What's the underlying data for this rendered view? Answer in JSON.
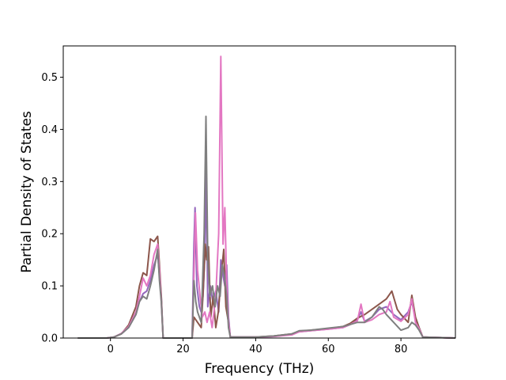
{
  "chart_data": {
    "type": "line",
    "title": "",
    "xlabel": "Frequency (THz)",
    "ylabel": "Partial Density of States",
    "xlim": [
      -13,
      95
    ],
    "ylim": [
      0,
      0.56
    ],
    "xticks": [
      0,
      20,
      40,
      60,
      80
    ],
    "yticks": [
      0.0,
      0.1,
      0.2,
      0.3,
      0.4,
      0.5
    ],
    "xtick_labels": [
      "0",
      "20",
      "40",
      "60",
      "80"
    ],
    "ytick_labels": [
      "0.0",
      "0.1",
      "0.2",
      "0.3",
      "0.4",
      "0.5"
    ],
    "grid": false,
    "legend": false,
    "series": [
      {
        "color": "#9467bd",
        "points": [
          [
            -9,
            0
          ],
          [
            -1,
            0
          ],
          [
            1,
            0.002
          ],
          [
            3,
            0.008
          ],
          [
            5,
            0.02
          ],
          [
            7,
            0.045
          ],
          [
            8,
            0.07
          ],
          [
            9,
            0.085
          ],
          [
            10,
            0.09
          ],
          [
            11,
            0.11
          ],
          [
            12,
            0.14
          ],
          [
            13,
            0.16
          ],
          [
            13.5,
            0.12
          ],
          [
            14,
            0.08
          ],
          [
            14.5,
            0.0
          ],
          [
            22.5,
            0.0
          ],
          [
            23,
            0.18
          ],
          [
            23.3,
            0.25
          ],
          [
            23.8,
            0.1
          ],
          [
            24.5,
            0.06
          ],
          [
            25,
            0.05
          ],
          [
            25.5,
            0.08
          ],
          [
            26,
            0.16
          ],
          [
            26.4,
            0.32
          ],
          [
            26.8,
            0.06
          ],
          [
            27.5,
            0.1
          ],
          [
            28.2,
            0.07
          ],
          [
            29,
            0.09
          ],
          [
            29.8,
            0.05
          ],
          [
            30.4,
            0.15
          ],
          [
            31,
            0.12
          ],
          [
            31.5,
            0.1
          ],
          [
            32,
            0.14
          ],
          [
            32.5,
            0.04
          ],
          [
            33,
            0.002
          ],
          [
            40,
            0.002
          ],
          [
            45,
            0.003
          ],
          [
            50,
            0.007
          ],
          [
            52,
            0.012
          ],
          [
            55,
            0.014
          ],
          [
            60,
            0.017
          ],
          [
            64,
            0.02
          ],
          [
            66,
            0.026
          ],
          [
            68,
            0.035
          ],
          [
            69,
            0.05
          ],
          [
            70,
            0.032
          ],
          [
            72,
            0.04
          ],
          [
            74,
            0.055
          ],
          [
            76,
            0.06
          ],
          [
            78,
            0.045
          ],
          [
            80,
            0.035
          ],
          [
            82,
            0.05
          ],
          [
            83,
            0.07
          ],
          [
            84,
            0.035
          ],
          [
            85,
            0.02
          ],
          [
            86,
            0.002
          ],
          [
            95,
            0
          ]
        ]
      },
      {
        "color": "#8c564b",
        "points": [
          [
            -9,
            0
          ],
          [
            -1,
            0
          ],
          [
            1,
            0.002
          ],
          [
            3,
            0.008
          ],
          [
            5,
            0.025
          ],
          [
            7,
            0.06
          ],
          [
            8,
            0.1
          ],
          [
            9,
            0.125
          ],
          [
            10,
            0.12
          ],
          [
            11,
            0.19
          ],
          [
            12,
            0.185
          ],
          [
            13,
            0.195
          ],
          [
            13.5,
            0.14
          ],
          [
            14,
            0.08
          ],
          [
            14.5,
            0.0
          ],
          [
            22.5,
            0.0
          ],
          [
            23,
            0.04
          ],
          [
            24,
            0.03
          ],
          [
            25,
            0.02
          ],
          [
            25.6,
            0.1
          ],
          [
            26.1,
            0.18
          ],
          [
            26.5,
            0.15
          ],
          [
            27,
            0.175
          ],
          [
            27.6,
            0.04
          ],
          [
            28.3,
            0.08
          ],
          [
            29,
            0.02
          ],
          [
            29.7,
            0.05
          ],
          [
            30.5,
            0.12
          ],
          [
            31.2,
            0.17
          ],
          [
            31.8,
            0.06
          ],
          [
            32.5,
            0.03
          ],
          [
            33,
            0.002
          ],
          [
            40,
            0.002
          ],
          [
            45,
            0.004
          ],
          [
            50,
            0.008
          ],
          [
            52,
            0.013
          ],
          [
            55,
            0.015
          ],
          [
            60,
            0.018
          ],
          [
            64,
            0.022
          ],
          [
            66,
            0.028
          ],
          [
            68,
            0.038
          ],
          [
            70,
            0.045
          ],
          [
            72,
            0.055
          ],
          [
            74,
            0.065
          ],
          [
            76,
            0.075
          ],
          [
            77.5,
            0.09
          ],
          [
            79,
            0.055
          ],
          [
            80,
            0.045
          ],
          [
            82,
            0.03
          ],
          [
            83,
            0.082
          ],
          [
            84,
            0.04
          ],
          [
            85,
            0.02
          ],
          [
            86,
            0.002
          ],
          [
            95,
            0
          ]
        ]
      },
      {
        "color": "#e377c2",
        "points": [
          [
            -9,
            0
          ],
          [
            -1,
            0
          ],
          [
            1,
            0.002
          ],
          [
            3,
            0.009
          ],
          [
            5,
            0.022
          ],
          [
            7,
            0.05
          ],
          [
            8,
            0.08
          ],
          [
            9,
            0.115
          ],
          [
            10,
            0.1
          ],
          [
            11,
            0.12
          ],
          [
            12,
            0.16
          ],
          [
            13,
            0.18
          ],
          [
            13.5,
            0.13
          ],
          [
            14,
            0.07
          ],
          [
            14.5,
            0.0
          ],
          [
            22.5,
            0.0
          ],
          [
            23,
            0.12
          ],
          [
            23.4,
            0.24
          ],
          [
            24,
            0.13
          ],
          [
            24.7,
            0.08
          ],
          [
            25.3,
            0.04
          ],
          [
            26,
            0.05
          ],
          [
            26.6,
            0.03
          ],
          [
            27.3,
            0.05
          ],
          [
            28,
            0.02
          ],
          [
            29,
            0.08
          ],
          [
            29.8,
            0.2
          ],
          [
            30.4,
            0.54
          ],
          [
            31,
            0.18
          ],
          [
            31.5,
            0.25
          ],
          [
            32,
            0.1
          ],
          [
            32.5,
            0.03
          ],
          [
            33,
            0.002
          ],
          [
            40,
            0.002
          ],
          [
            45,
            0.003
          ],
          [
            50,
            0.006
          ],
          [
            52,
            0.012
          ],
          [
            55,
            0.014
          ],
          [
            60,
            0.017
          ],
          [
            64,
            0.02
          ],
          [
            66,
            0.026
          ],
          [
            68,
            0.033
          ],
          [
            69,
            0.065
          ],
          [
            70,
            0.03
          ],
          [
            72,
            0.035
          ],
          [
            74,
            0.045
          ],
          [
            76,
            0.05
          ],
          [
            77,
            0.07
          ],
          [
            78,
            0.04
          ],
          [
            80,
            0.032
          ],
          [
            82,
            0.045
          ],
          [
            83,
            0.075
          ],
          [
            84,
            0.03
          ],
          [
            85,
            0.018
          ],
          [
            86,
            0.002
          ],
          [
            95,
            0
          ]
        ]
      },
      {
        "color": "#7f7f7f",
        "points": [
          [
            -9,
            0
          ],
          [
            -1,
            0
          ],
          [
            1,
            0.002
          ],
          [
            3,
            0.008
          ],
          [
            5,
            0.02
          ],
          [
            7,
            0.045
          ],
          [
            8,
            0.07
          ],
          [
            9,
            0.08
          ],
          [
            10,
            0.075
          ],
          [
            11,
            0.1
          ],
          [
            12,
            0.13
          ],
          [
            13,
            0.17
          ],
          [
            13.5,
            0.11
          ],
          [
            14,
            0.07
          ],
          [
            14.5,
            0.0
          ],
          [
            22.5,
            0.0
          ],
          [
            23,
            0.11
          ],
          [
            23.5,
            0.07
          ],
          [
            24,
            0.05
          ],
          [
            25,
            0.03
          ],
          [
            25.8,
            0.2
          ],
          [
            26.3,
            0.425
          ],
          [
            26.8,
            0.15
          ],
          [
            27.4,
            0.08
          ],
          [
            28.1,
            0.1
          ],
          [
            28.8,
            0.06
          ],
          [
            29.5,
            0.1
          ],
          [
            30.2,
            0.08
          ],
          [
            30.8,
            0.14
          ],
          [
            31.4,
            0.12
          ],
          [
            32,
            0.08
          ],
          [
            32.5,
            0.02
          ],
          [
            33,
            0.002
          ],
          [
            40,
            0.002
          ],
          [
            45,
            0.004
          ],
          [
            50,
            0.008
          ],
          [
            52,
            0.014
          ],
          [
            55,
            0.015
          ],
          [
            60,
            0.019
          ],
          [
            64,
            0.022
          ],
          [
            66,
            0.026
          ],
          [
            68,
            0.03
          ],
          [
            70,
            0.03
          ],
          [
            72,
            0.04
          ],
          [
            73,
            0.05
          ],
          [
            74,
            0.06
          ],
          [
            75,
            0.055
          ],
          [
            76,
            0.045
          ],
          [
            78,
            0.03
          ],
          [
            80,
            0.015
          ],
          [
            82,
            0.02
          ],
          [
            83,
            0.03
          ],
          [
            84,
            0.025
          ],
          [
            85,
            0.015
          ],
          [
            86,
            0.002
          ],
          [
            95,
            0
          ]
        ]
      }
    ]
  }
}
